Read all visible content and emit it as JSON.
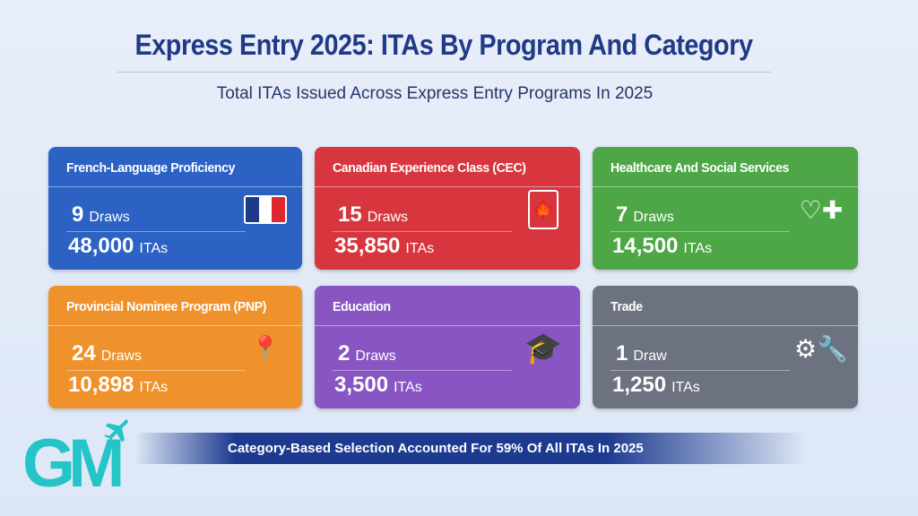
{
  "header": {
    "title": "Express Entry 2025: ITAs By Program And Category",
    "subtitle": "Total ITAs Issued Across Express Entry Programs In 2025"
  },
  "cards": [
    {
      "name": "French-Language Proficiency",
      "draws": "9",
      "draws_label": "Draws",
      "itas": "48,000",
      "itas_label": "ITAs",
      "color": "#2b62c4",
      "icon": "france-flag-icon"
    },
    {
      "name": "Canadian Experience Class (CEC)",
      "draws": "15",
      "draws_label": "Draws",
      "itas": "35,850",
      "itas_label": "ITAs",
      "color": "#d8363e",
      "icon": "maple-leaf-clipboard-icon"
    },
    {
      "name": "Healthcare And Social Services",
      "draws": "7",
      "draws_label": "Draws",
      "itas": "14,500",
      "itas_label": "ITAs",
      "color": "#4ea746",
      "icon": "medical-heart-icon"
    },
    {
      "name": "Provincial Nominee Program (PNP)",
      "draws": "24",
      "draws_label": "Draws",
      "itas": "10,898",
      "itas_label": "ITAs",
      "color": "#f0922b",
      "icon": "map-pin-icon"
    },
    {
      "name": "Education",
      "draws": "2",
      "draws_label": "Draws",
      "itas": "3,500",
      "itas_label": "ITAs",
      "color": "#8955c3",
      "icon": "graduation-cap-icon"
    },
    {
      "name": "Trade",
      "draws": "1",
      "draws_label": "Draw",
      "itas": "1,250",
      "itas_label": "ITAs",
      "color": "#6c727f",
      "icon": "tools-icon"
    }
  ],
  "banner": {
    "text": "Category-Based Selection Accounted For 59% Of All ITAs In 2025"
  },
  "logo": {
    "text": "GM"
  }
}
